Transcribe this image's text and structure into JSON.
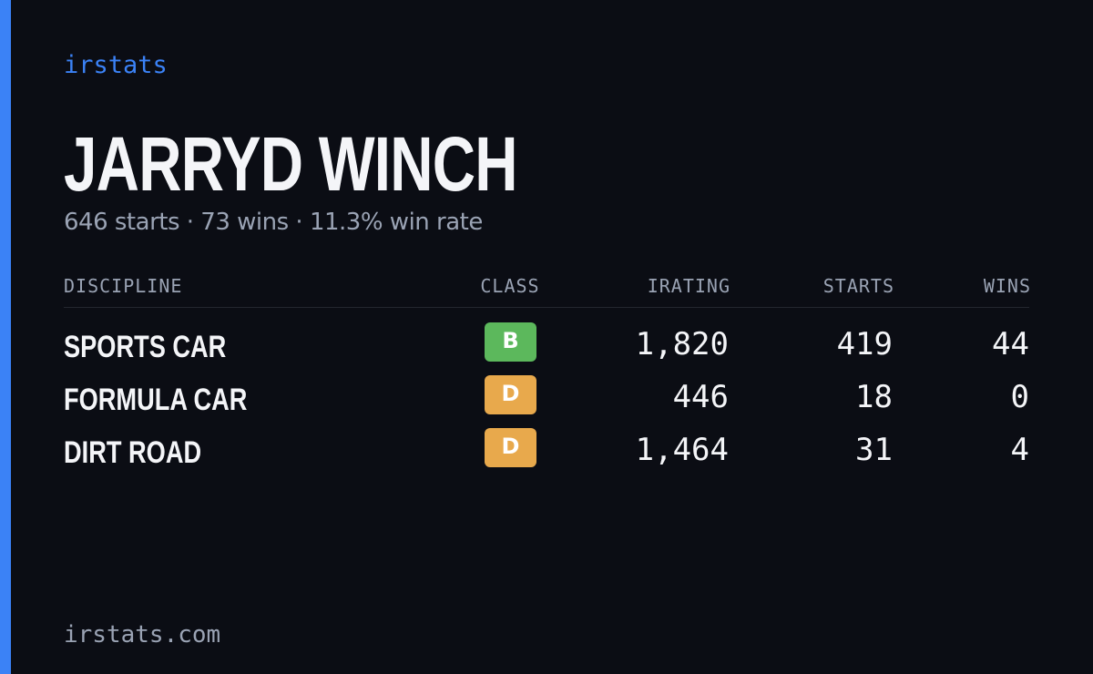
{
  "header": {
    "brand": "irstats",
    "name": "JARRYD WINCH",
    "summary": "646 starts · 73 wins · 11.3% win rate"
  },
  "table": {
    "columns": [
      "DISCIPLINE",
      "CLASS",
      "IRATING",
      "STARTS",
      "WINS"
    ],
    "rows": [
      {
        "discipline": "SPORTS CAR",
        "class": "B",
        "class_color": "#5cb85c",
        "irating": "1,820",
        "starts": "419",
        "wins": "44"
      },
      {
        "discipline": "FORMULA CAR",
        "class": "D",
        "class_color": "#e8a94c",
        "irating": "446",
        "starts": "18",
        "wins": "0"
      },
      {
        "discipline": "DIRT ROAD",
        "class": "D",
        "class_color": "#e8a94c",
        "irating": "1,464",
        "starts": "31",
        "wins": "4"
      }
    ]
  },
  "footer": {
    "site": "irstats.com"
  }
}
